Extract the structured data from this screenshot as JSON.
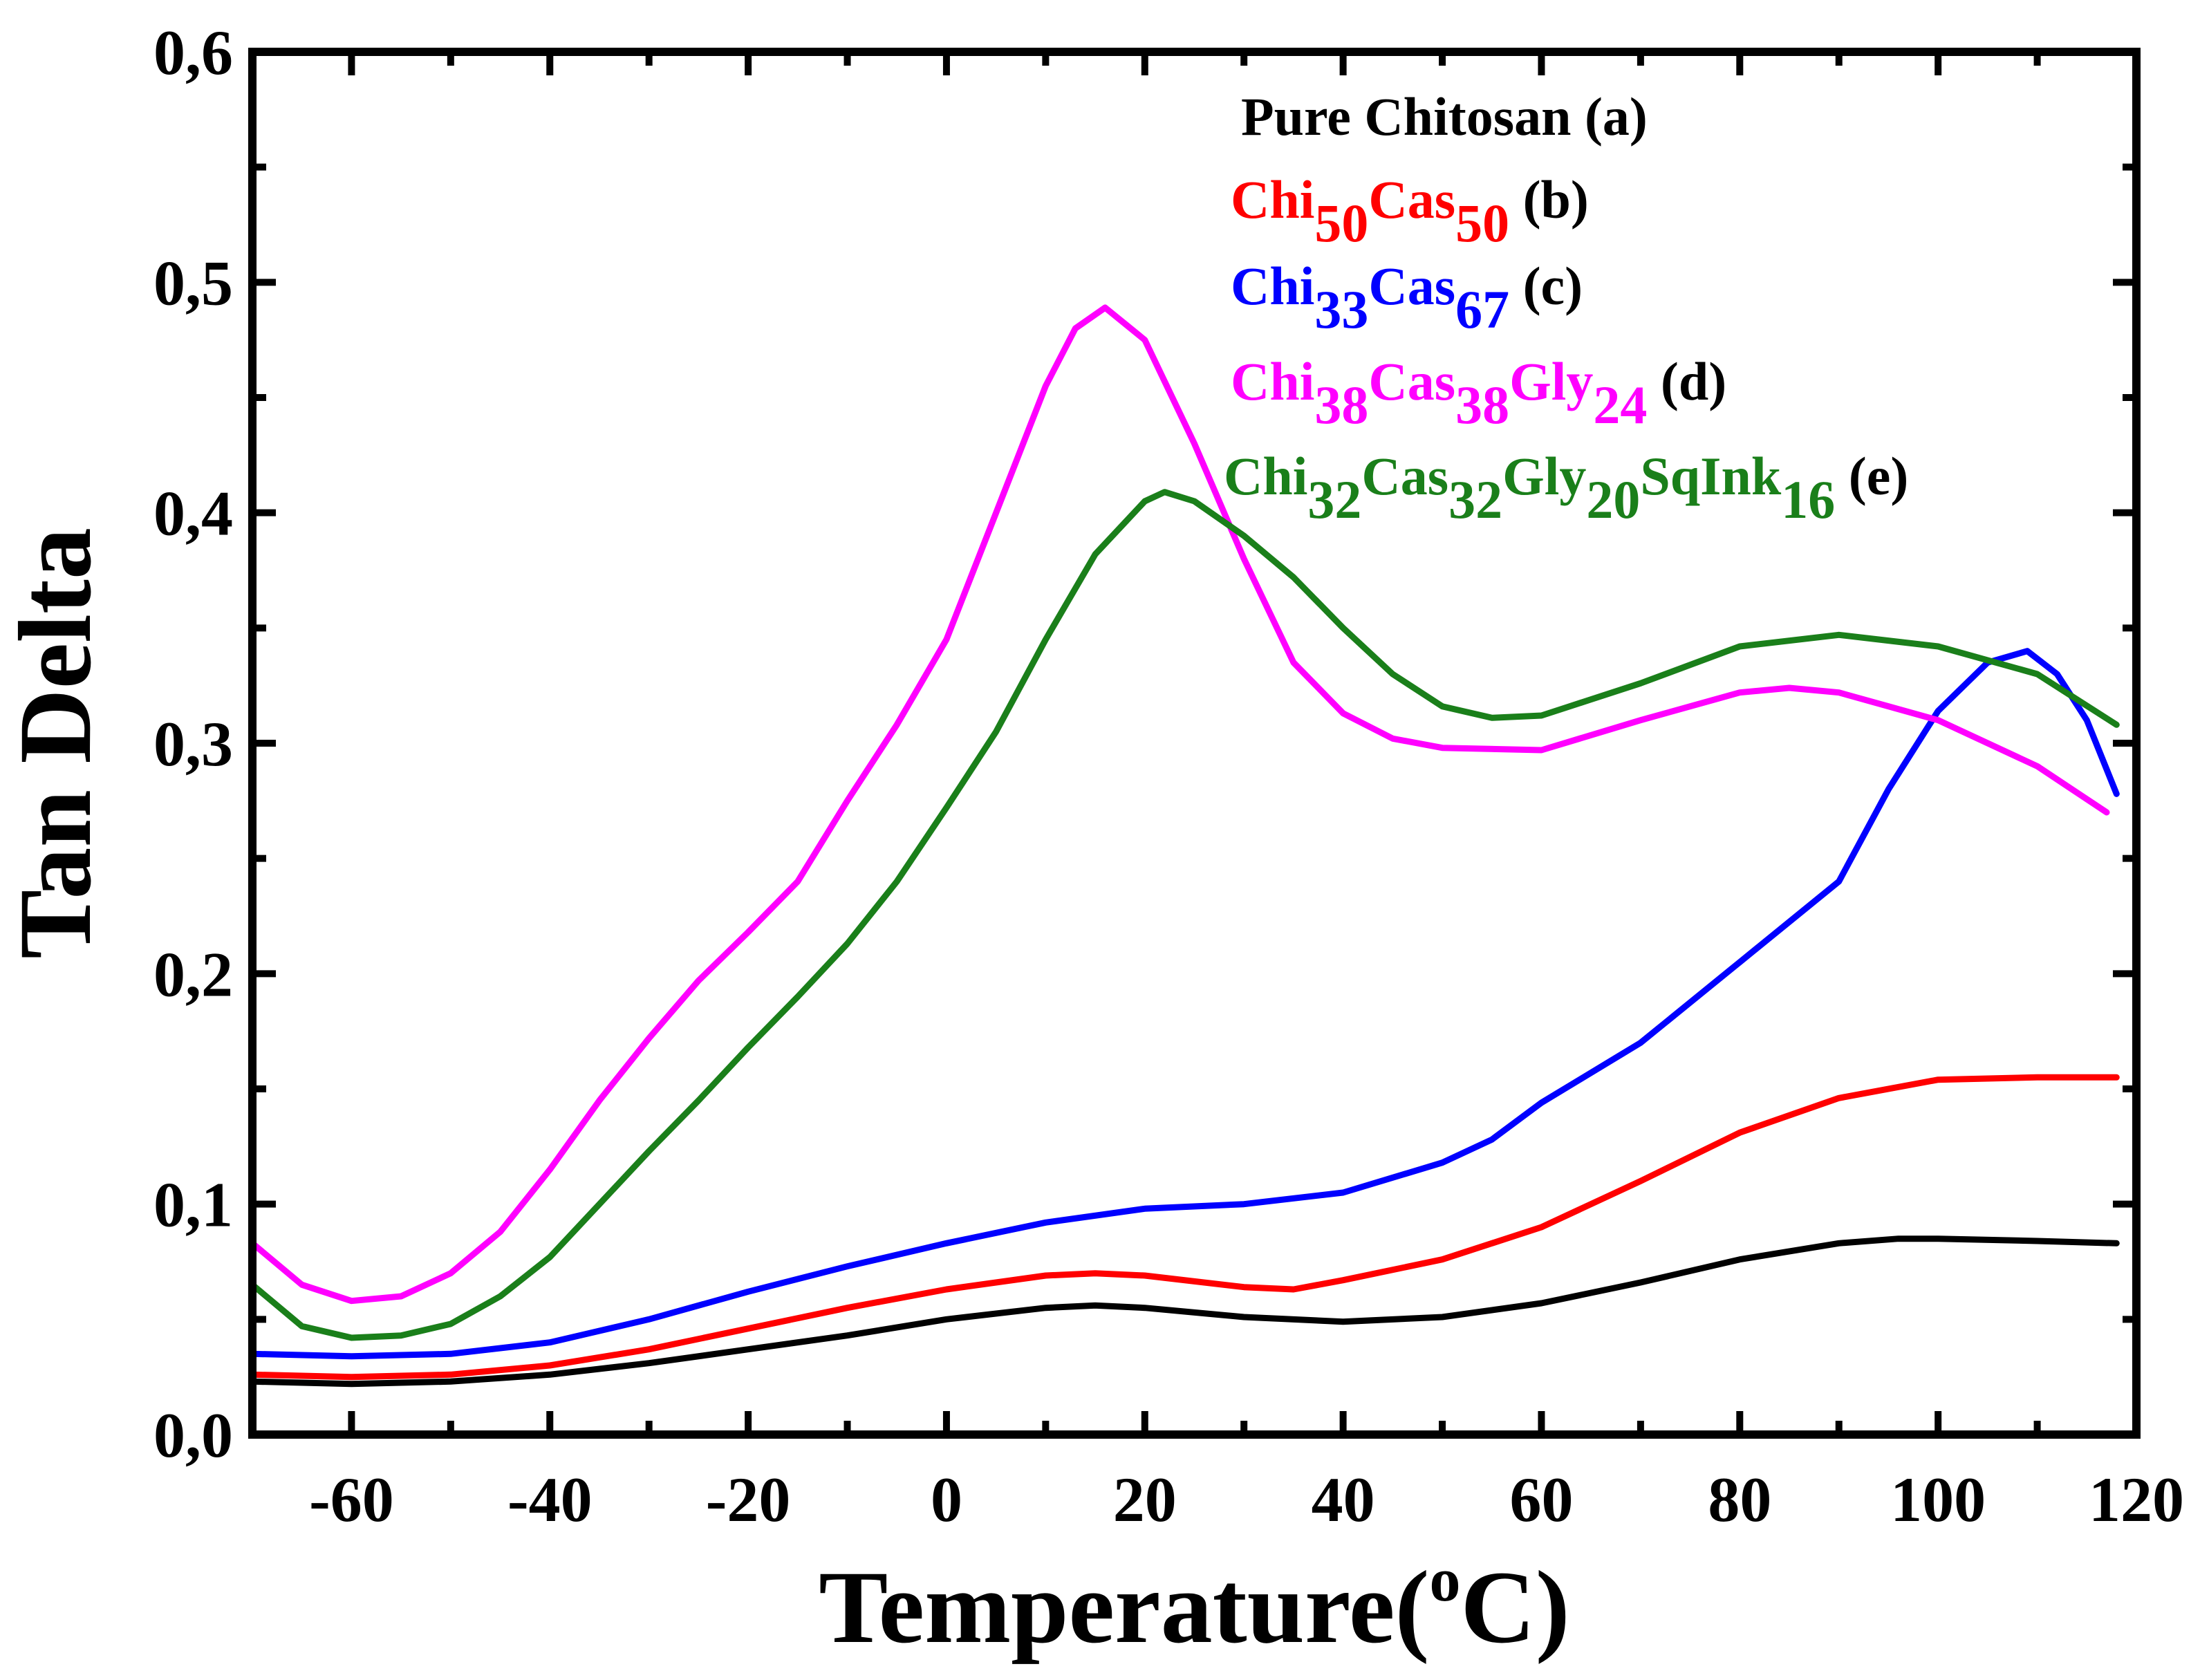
{
  "chart_data": {
    "type": "line",
    "title": "",
    "xlabel": "Temperature(oC)",
    "xlabel_parts": {
      "prefix": "Temperature(",
      "sup": "o",
      "suffix": "C)"
    },
    "ylabel": "Tan Delta",
    "xlim": [
      -70,
      120
    ],
    "ylim": [
      0.0,
      0.6
    ],
    "x_ticks": [
      -60,
      -40,
      -20,
      0,
      20,
      40,
      60,
      80,
      100,
      120
    ],
    "x_tick_labels": [
      "-60",
      "-40",
      "-20",
      "0",
      "20",
      "40",
      "60",
      "80",
      "100",
      "120"
    ],
    "y_ticks": [
      0.0,
      0.1,
      0.2,
      0.3,
      0.4,
      0.5,
      0.6
    ],
    "y_tick_labels": [
      "0,0",
      "0,1",
      "0,2",
      "0,3",
      "0,4",
      "0,5",
      "0,6"
    ],
    "grid": false,
    "legend_position": "top-right",
    "series": [
      {
        "name": "Pure Chitosan (a)",
        "color": "#000000",
        "legend_parts": [
          {
            "text": "Pure Chitosan",
            "sub": false,
            "color": "#000000"
          },
          {
            "text": " (a)",
            "sub": false,
            "color": "#000000"
          }
        ],
        "x": [
          -70,
          -60,
          -50,
          -40,
          -30,
          -20,
          -10,
          0,
          10,
          15,
          20,
          30,
          40,
          50,
          60,
          70,
          80,
          90,
          96,
          100,
          110,
          118
        ],
        "y": [
          0.023,
          0.022,
          0.023,
          0.026,
          0.031,
          0.037,
          0.043,
          0.05,
          0.055,
          0.056,
          0.055,
          0.051,
          0.049,
          0.051,
          0.057,
          0.066,
          0.076,
          0.083,
          0.085,
          0.085,
          0.084,
          0.083
        ]
      },
      {
        "name": "Chi50Cas50 (b)",
        "color": "#ff0000",
        "legend_parts": [
          {
            "text": "Chi",
            "sub": false,
            "color": "#ff0000"
          },
          {
            "text": "50",
            "sub": true,
            "color": "#ff0000"
          },
          {
            "text": "Cas",
            "sub": false,
            "color": "#ff0000"
          },
          {
            "text": "50",
            "sub": true,
            "color": "#ff0000"
          },
          {
            "text": " (b)",
            "sub": false,
            "color": "#000000"
          }
        ],
        "x": [
          -70,
          -60,
          -50,
          -40,
          -30,
          -20,
          -10,
          0,
          10,
          15,
          20,
          30,
          35,
          40,
          50,
          60,
          70,
          80,
          90,
          100,
          110,
          118
        ],
        "y": [
          0.026,
          0.025,
          0.026,
          0.03,
          0.037,
          0.046,
          0.055,
          0.063,
          0.069,
          0.07,
          0.069,
          0.064,
          0.063,
          0.067,
          0.076,
          0.09,
          0.11,
          0.131,
          0.146,
          0.154,
          0.155,
          0.155
        ]
      },
      {
        "name": "Chi33Cas67 (c)",
        "color": "#0000ff",
        "legend_parts": [
          {
            "text": "Chi",
            "sub": false,
            "color": "#0000ff"
          },
          {
            "text": "33",
            "sub": true,
            "color": "#0000ff"
          },
          {
            "text": "Cas",
            "sub": false,
            "color": "#0000ff"
          },
          {
            "text": "67",
            "sub": true,
            "color": "#0000ff"
          },
          {
            "text": " (c)",
            "sub": false,
            "color": "#000000"
          }
        ],
        "x": [
          -70,
          -60,
          -50,
          -40,
          -30,
          -20,
          -10,
          0,
          10,
          20,
          30,
          40,
          50,
          55,
          60,
          70,
          80,
          90,
          95,
          100,
          105,
          109,
          112,
          115,
          118
        ],
        "y": [
          0.035,
          0.034,
          0.035,
          0.04,
          0.05,
          0.062,
          0.073,
          0.083,
          0.092,
          0.098,
          0.1,
          0.105,
          0.118,
          0.128,
          0.144,
          0.17,
          0.205,
          0.24,
          0.28,
          0.314,
          0.335,
          0.34,
          0.33,
          0.31,
          0.278
        ]
      },
      {
        "name": "Chi38Cas38Gly24 (d)",
        "color": "#ff00ff",
        "legend_parts": [
          {
            "text": "Chi",
            "sub": false,
            "color": "#ff00ff"
          },
          {
            "text": "38",
            "sub": true,
            "color": "#ff00ff"
          },
          {
            "text": "Cas",
            "sub": false,
            "color": "#ff00ff"
          },
          {
            "text": "38",
            "sub": true,
            "color": "#ff00ff"
          },
          {
            "text": "Gly",
            "sub": false,
            "color": "#ff00ff"
          },
          {
            "text": "24",
            "sub": true,
            "color": "#ff00ff"
          },
          {
            "text": " (d)",
            "sub": false,
            "color": "#000000"
          }
        ],
        "x": [
          -70,
          -65,
          -60,
          -55,
          -50,
          -45,
          -40,
          -35,
          -30,
          -25,
          -20,
          -15,
          -10,
          -5,
          0,
          5,
          10,
          13,
          16,
          20,
          25,
          30,
          35,
          40,
          45,
          50,
          60,
          70,
          80,
          85,
          90,
          100,
          110,
          117
        ],
        "y": [
          0.083,
          0.065,
          0.058,
          0.06,
          0.07,
          0.088,
          0.115,
          0.145,
          0.172,
          0.197,
          0.218,
          0.24,
          0.275,
          0.308,
          0.345,
          0.4,
          0.455,
          0.48,
          0.489,
          0.475,
          0.43,
          0.38,
          0.335,
          0.313,
          0.302,
          0.298,
          0.297,
          0.31,
          0.322,
          0.324,
          0.322,
          0.31,
          0.29,
          0.27
        ]
      },
      {
        "name": "Chi32Cas32Gly20SqInk16 (e)",
        "color": "#1a7f1a",
        "legend_parts": [
          {
            "text": "Chi",
            "sub": false,
            "color": "#1a7f1a"
          },
          {
            "text": "32",
            "sub": true,
            "color": "#1a7f1a"
          },
          {
            "text": "Cas",
            "sub": false,
            "color": "#1a7f1a"
          },
          {
            "text": "32",
            "sub": true,
            "color": "#1a7f1a"
          },
          {
            "text": "Gly",
            "sub": false,
            "color": "#1a7f1a"
          },
          {
            "text": "20",
            "sub": true,
            "color": "#1a7f1a"
          },
          {
            "text": "SqInk",
            "sub": false,
            "color": "#1a7f1a"
          },
          {
            "text": "16",
            "sub": true,
            "color": "#1a7f1a"
          },
          {
            "text": " (e)",
            "sub": false,
            "color": "#000000"
          }
        ],
        "x": [
          -70,
          -65,
          -60,
          -55,
          -50,
          -45,
          -40,
          -35,
          -30,
          -25,
          -20,
          -15,
          -10,
          -5,
          0,
          5,
          10,
          15,
          20,
          22,
          25,
          30,
          35,
          40,
          45,
          50,
          55,
          60,
          70,
          80,
          90,
          100,
          110,
          118
        ],
        "y": [
          0.065,
          0.047,
          0.042,
          0.043,
          0.048,
          0.06,
          0.077,
          0.1,
          0.123,
          0.145,
          0.168,
          0.19,
          0.213,
          0.24,
          0.272,
          0.305,
          0.345,
          0.382,
          0.405,
          0.409,
          0.405,
          0.39,
          0.372,
          0.35,
          0.33,
          0.316,
          0.311,
          0.312,
          0.326,
          0.342,
          0.347,
          0.342,
          0.33,
          0.308
        ]
      }
    ]
  }
}
